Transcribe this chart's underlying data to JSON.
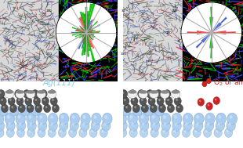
{
  "fig_width": 3.1,
  "fig_height": 1.89,
  "dpi": 100,
  "bg_color": "#ffffff",
  "label_ag": "Ag(111)",
  "label_ag_color": "#88ccee",
  "label_o2_color": "#cc2222",
  "label_or_air": " or air",
  "sphere_ag_color": "#aaccee",
  "sphere_ag_edge": "#7799bb",
  "sphere_dark_color": "#555555",
  "sphere_dark_edge": "#222222",
  "sphere_white_color": "#f0f0f0",
  "sphere_white_edge": "#999999",
  "sphere_red_color": "#cc2222",
  "sphere_red_edge": "#881111",
  "stm_left_bg": "#e0e0e0",
  "stm_right_bg": "#000000",
  "fiber_left_colors": [
    "#2244aa",
    "#224422",
    "#aa2222",
    "#555555"
  ],
  "fiber_right_colors": [
    "#00cc00",
    "#ff2222",
    "#4444ff"
  ],
  "rose1_disordered": true,
  "rose2_disordered": false
}
